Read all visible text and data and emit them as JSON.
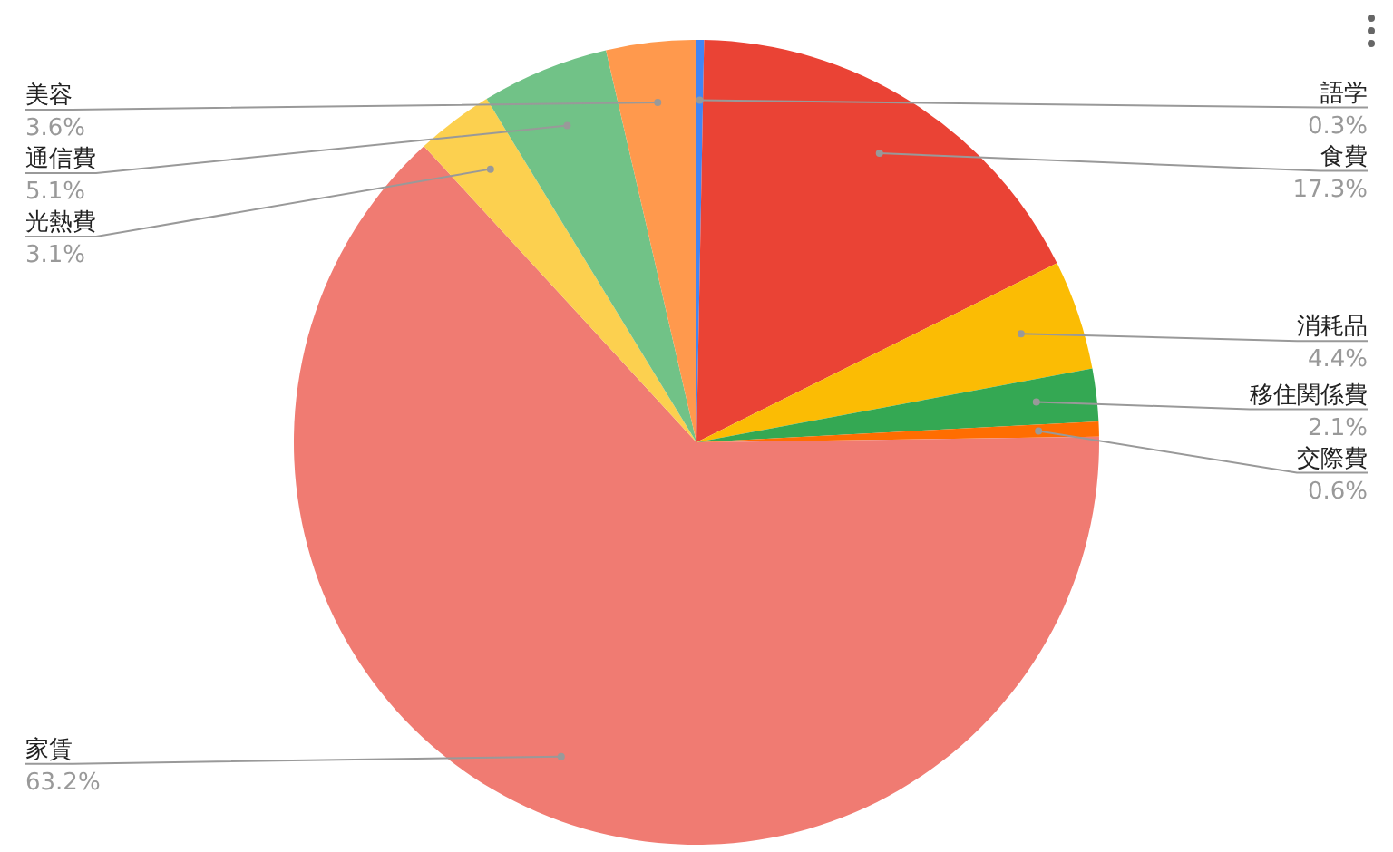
{
  "chart_data": {
    "type": "pie",
    "categories": [
      "語学",
      "食費",
      "消耗品",
      "移住関係費",
      "交際費",
      "家賃",
      "光熱費",
      "通信費",
      "美容"
    ],
    "values": [
      0.3,
      17.3,
      4.4,
      2.1,
      0.6,
      63.2,
      3.1,
      5.1,
      3.6
    ],
    "value_labels": [
      "0.3%",
      "17.3%",
      "4.4%",
      "2.1%",
      "0.6%",
      "63.2%",
      "3.1%",
      "5.1%",
      "3.6%"
    ],
    "colors": [
      "#4285f4",
      "#ea4335",
      "#fbbc04",
      "#34a853",
      "#ff6d01",
      "#f07b72",
      "#fcd04f",
      "#71c287",
      "#ff994d"
    ],
    "legend": false
  }
}
